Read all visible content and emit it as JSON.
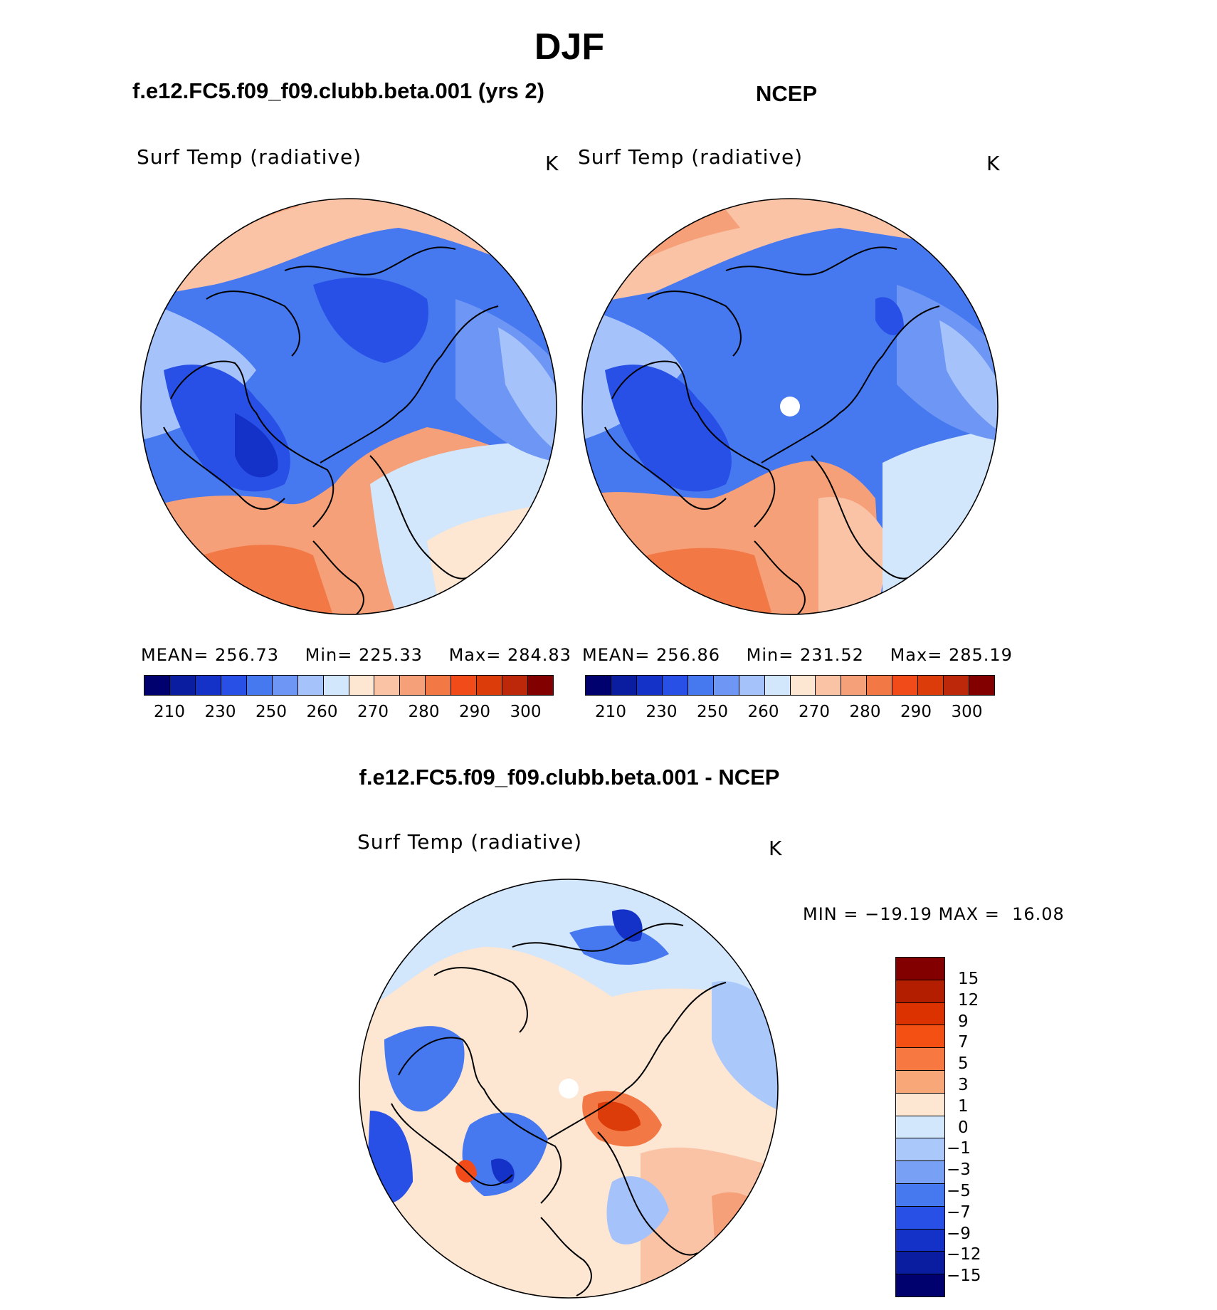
{
  "figure": {
    "title": "DJF",
    "left_header": "f.e12.FC5.f09_f09.clubb.beta.001 (yrs 2)",
    "right_header": "NCEP",
    "diff_header": "f.e12.FC5.f09_f09.clubb.beta.001 - NCEP"
  },
  "colors": {
    "abs_scale": [
      "#00006e",
      "#0a1ca0",
      "#1432c8",
      "#2850e6",
      "#4678f0",
      "#6e96f5",
      "#a5c3fa",
      "#d2e6fc",
      "#fde6d2",
      "#fac3a5",
      "#f5a078",
      "#f27846",
      "#f04b19",
      "#dc3c0a",
      "#be280a",
      "#820000"
    ],
    "diff_scale": [
      "#820000",
      "#b41e00",
      "#dc3200",
      "#f55014",
      "#f77840",
      "#f8a878",
      "#fde6d2",
      "#d2e6fc",
      "#aac8fa",
      "#78a0f5",
      "#4678f0",
      "#2850e6",
      "#1432c8",
      "#0a1ca0",
      "#00006e"
    ]
  },
  "panels": [
    {
      "id": "model",
      "variable": "Surf Temp (radiative)",
      "units": "K",
      "mean_label": "MEAN=",
      "mean": "256.73",
      "min_label": "Min=",
      "min": "225.33",
      "max_label": "Max=",
      "max": "284.83",
      "colorbar_ticks": [
        "210",
        "230",
        "250",
        "260",
        "270",
        "280",
        "290",
        "300"
      ]
    },
    {
      "id": "ncep",
      "variable": "Surf Temp (radiative)",
      "units": "K",
      "mean_label": "MEAN=",
      "mean": "256.86",
      "min_label": "Min=",
      "min": "231.52",
      "max_label": "Max=",
      "max": "285.19",
      "colorbar_ticks": [
        "210",
        "230",
        "250",
        "260",
        "270",
        "280",
        "290",
        "300"
      ]
    }
  ],
  "diff_panel": {
    "variable": "Surf Temp (radiative)",
    "units": "K",
    "minmax": "MIN = −19.19 MAX =  16.08",
    "colorbar_ticks": [
      "15",
      "12",
      "9",
      "7",
      "5",
      "3",
      "1",
      "0",
      "−1",
      "−3",
      "−5",
      "−7",
      "−9",
      "−12",
      "−15"
    ]
  },
  "icons": {
    "globe": "polar-stereographic-map"
  }
}
